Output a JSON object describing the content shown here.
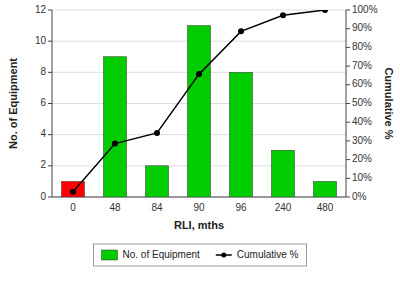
{
  "chart_data": {
    "type": "bar",
    "categories": [
      "0",
      "48",
      "84",
      "90",
      "96",
      "240",
      "480"
    ],
    "xlabel": "RLI, mths",
    "ylabel": "No. of Equipment",
    "y2label": "Cumulative %",
    "ylim": [
      0,
      12
    ],
    "yticks": [
      0,
      2,
      4,
      6,
      8,
      10,
      12
    ],
    "y2lim": [
      0,
      100
    ],
    "y2ticks": [
      {
        "value": 0,
        "label": "0%"
      },
      {
        "value": 10,
        "label": "10%"
      },
      {
        "value": 20,
        "label": "20%"
      },
      {
        "value": 30,
        "label": "30%"
      },
      {
        "value": 40,
        "label": "40%"
      },
      {
        "value": 50,
        "label": "50%"
      },
      {
        "value": 60,
        "label": "60%"
      },
      {
        "value": 70,
        "label": "70%"
      },
      {
        "value": 80,
        "label": "80%"
      },
      {
        "value": 90,
        "label": "90%"
      },
      {
        "value": 100,
        "label": "100%"
      }
    ],
    "grid": true,
    "legend": "bottom",
    "series": [
      {
        "name": "No. of Equipment",
        "type": "bar",
        "color": "#00cc00",
        "colors": [
          "#ff0000",
          "#00cc00",
          "#00cc00",
          "#00cc00",
          "#00cc00",
          "#00cc00",
          "#00cc00"
        ],
        "values": [
          1,
          9,
          2,
          11,
          8,
          3,
          1
        ]
      },
      {
        "name": "Cumulative %",
        "type": "line",
        "axis": "y2",
        "color": "#000000",
        "marker": "circle",
        "values": [
          2.857,
          28.571,
          34.286,
          65.714,
          88.571,
          97.143,
          100.0
        ]
      }
    ]
  }
}
